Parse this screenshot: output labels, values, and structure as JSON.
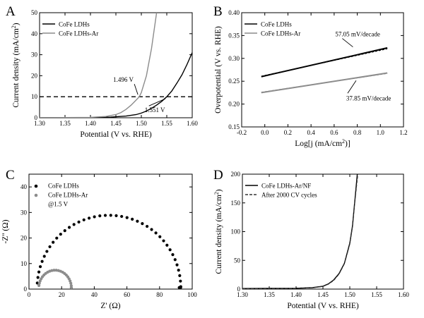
{
  "chart_data": [
    {
      "panel_label": "A",
      "type": "line",
      "xlabel": "Potential (V vs. RHE)",
      "ylabel": "Current density (mA/cm",
      "ylabel_sup": "2",
      "ylabel_end": ")",
      "xlim": [
        1.3,
        1.6
      ],
      "ylim": [
        0,
        50
      ],
      "xticks": [
        "1.30",
        "1.35",
        "1.40",
        "1.45",
        "1.50",
        "1.55",
        "1.60"
      ],
      "yticks": [
        "0",
        "10",
        "20",
        "30",
        "40",
        "50"
      ],
      "legend_position": "top-left",
      "series": [
        {
          "name": "CoFe LDHs",
          "color": "#000000",
          "x": [
            1.3,
            1.4,
            1.44,
            1.47,
            1.49,
            1.5,
            1.51,
            1.52,
            1.53,
            1.54,
            1.55,
            1.56,
            1.57,
            1.58,
            1.59,
            1.6
          ],
          "y": [
            0,
            0.1,
            0.3,
            0.8,
            1.5,
            2.2,
            3.2,
            4.5,
            6.0,
            7.8,
            10.0,
            12.8,
            16.5,
            20.5,
            25.5,
            31.0
          ]
        },
        {
          "name": "CoFe LDHs-Ar",
          "color": "#8c8c8c",
          "x": [
            1.3,
            1.4,
            1.43,
            1.45,
            1.46,
            1.47,
            1.48,
            1.49,
            1.496,
            1.5,
            1.51,
            1.52,
            1.53
          ],
          "y": [
            0,
            0.2,
            0.6,
            1.5,
            2.5,
            4.0,
            6.0,
            8.5,
            10.0,
            12.0,
            20.0,
            33.0,
            50.0
          ]
        }
      ],
      "reference_line": {
        "y": 10,
        "style": "dashed"
      },
      "annotations": [
        {
          "text": "1.496 V",
          "x": 1.496,
          "y": 10
        },
        {
          "text": "1.551 V",
          "x": 1.551,
          "y": 10
        }
      ]
    },
    {
      "panel_label": "B",
      "type": "line",
      "xlabel": "Log[j (mA/cm",
      "xlabel_sup": "2",
      "xlabel_end": ")]",
      "ylabel": "Overpotential (V vs. RHE)",
      "xlim": [
        -0.2,
        1.2
      ],
      "ylim": [
        0.15,
        0.4
      ],
      "xticks": [
        "-0.2",
        "0.0",
        "0.2",
        "0.4",
        "0.6",
        "0.8",
        "1.0",
        "1.2"
      ],
      "yticks": [
        "0.15",
        "0.20",
        "0.25",
        "0.30",
        "0.35",
        "0.40"
      ],
      "legend_position": "top-left",
      "series": [
        {
          "name": "CoFe LDHs",
          "color": "#000000",
          "x": [
            -0.03,
            1.06
          ],
          "y": [
            0.26,
            0.323
          ],
          "fit_y": [
            0.261,
            0.321
          ]
        },
        {
          "name": "CoFe LDHs-Ar",
          "color": "#8c8c8c",
          "x": [
            -0.03,
            1.06
          ],
          "y": [
            0.225,
            0.268
          ],
          "fit_y": [
            0.226,
            0.267
          ]
        }
      ],
      "annotations": [
        {
          "text": "57.05 mV/decade",
          "x": 0.75,
          "y": 0.322
        },
        {
          "text": "37.85 mV/decade",
          "x": 0.79,
          "y": 0.256
        }
      ]
    },
    {
      "panel_label": "C",
      "type": "scatter",
      "xlabel": "Z' (Ω)",
      "ylabel": "-Z'' (Ω)",
      "xlim": [
        0,
        100
      ],
      "ylim": [
        0,
        45
      ],
      "xticks": [
        "0",
        "20",
        "40",
        "60",
        "80",
        "100"
      ],
      "yticks": [
        "0",
        "10",
        "20",
        "30",
        "40"
      ],
      "legend_position": "top-left",
      "legend_note": "@1.5 V",
      "series": [
        {
          "name": "CoFe LDHs",
          "color": "#000000",
          "center_x": 49,
          "radius_x": 44,
          "peak_y": 28.5,
          "start_angle": 176,
          "end_angle": -12,
          "points": 44
        },
        {
          "name": "CoFe LDHs-Ar",
          "color": "#8c8c8c",
          "center_x": 16,
          "radius_x": 10,
          "peak_y": 7,
          "start_angle": 172,
          "end_angle": -8,
          "points": 24
        }
      ]
    },
    {
      "panel_label": "D",
      "type": "line",
      "xlabel": "Potential (V vs. RHE)",
      "ylabel": "Current density (mA/cm",
      "ylabel_sup": "2",
      "ylabel_end": ")",
      "xlim": [
        1.3,
        1.6
      ],
      "ylim": [
        0,
        200
      ],
      "xticks": [
        "1.30",
        "1.35",
        "1.40",
        "1.45",
        "1.50",
        "1.55",
        "1.60"
      ],
      "yticks": [
        "0",
        "50",
        "100",
        "150",
        "200"
      ],
      "legend_position": "top-left",
      "series": [
        {
          "name": "CoFe LDHs-Ar/NF",
          "color": "#000000",
          "dash": false,
          "x": [
            1.3,
            1.4,
            1.43,
            1.45,
            1.46,
            1.47,
            1.48,
            1.49,
            1.5,
            1.505,
            1.51,
            1.514
          ],
          "y": [
            1,
            1.5,
            2.5,
            5,
            9,
            16,
            27,
            45,
            80,
            110,
            160,
            200
          ]
        },
        {
          "name": "After 2000 CV cycles",
          "color": "#333333",
          "dash": true,
          "x": [
            1.3,
            1.4,
            1.43,
            1.45,
            1.46,
            1.47,
            1.48,
            1.49,
            1.5,
            1.505,
            1.51,
            1.515
          ],
          "y": [
            0.5,
            1.2,
            2.2,
            4.5,
            8.5,
            15,
            26,
            44,
            78,
            108,
            157,
            200
          ]
        }
      ]
    }
  ]
}
